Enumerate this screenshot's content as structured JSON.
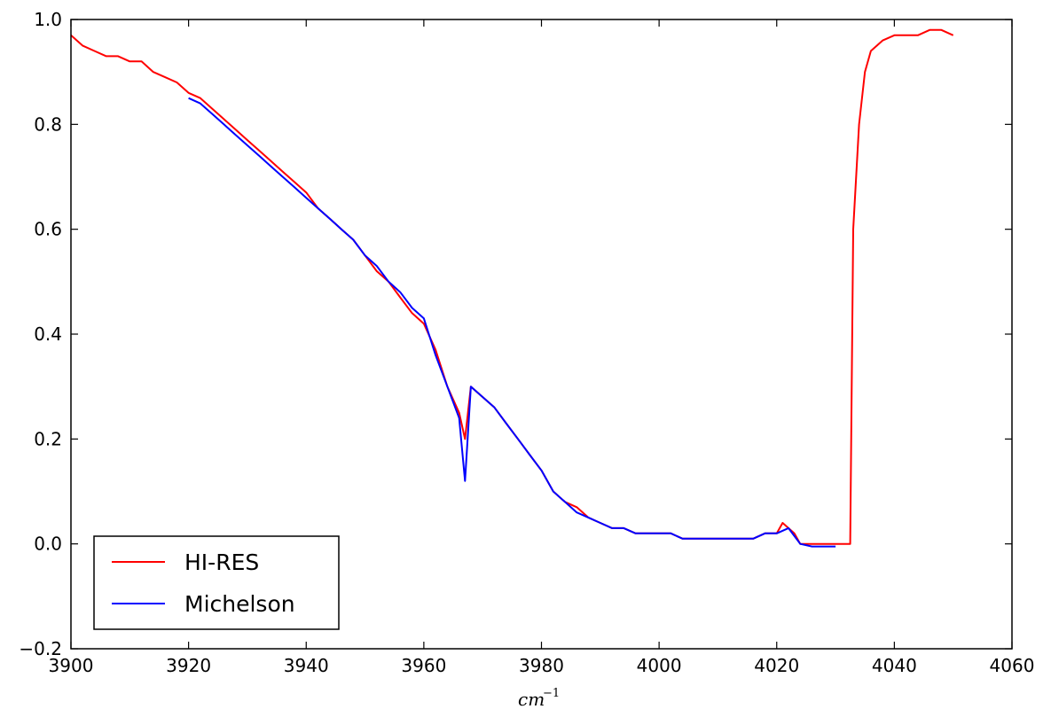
{
  "chart_data": {
    "type": "line",
    "title": "",
    "xlabel": "cm",
    "xlabel_sup": "−1",
    "ylabel": "",
    "xlim": [
      3900,
      4060
    ],
    "ylim": [
      -0.2,
      1.0
    ],
    "x_ticks": [
      3900,
      3920,
      3940,
      3960,
      3980,
      4000,
      4020,
      4040,
      4060
    ],
    "y_ticks": [
      -0.2,
      0.0,
      0.2,
      0.4,
      0.6,
      0.8,
      1.0
    ],
    "x_tick_labels": [
      "3900",
      "3920",
      "3940",
      "3960",
      "3980",
      "4000",
      "4020",
      "4040",
      "4060"
    ],
    "y_tick_labels": [
      "−0.2",
      "0.0",
      "0.2",
      "0.4",
      "0.6",
      "0.8",
      "1.0"
    ],
    "grid": false,
    "legend_position": "lower-left",
    "series": [
      {
        "name": "HI-RES",
        "color": "#ff0000",
        "x": [
          3900,
          3902,
          3904,
          3906,
          3908,
          3910,
          3912,
          3914,
          3916,
          3918,
          3920,
          3922,
          3924,
          3926,
          3928,
          3930,
          3932,
          3934,
          3936,
          3938,
          3940,
          3942,
          3944,
          3946,
          3948,
          3950,
          3952,
          3954,
          3956,
          3958,
          3960,
          3962,
          3964,
          3966,
          3967,
          3968,
          3970,
          3972,
          3974,
          3976,
          3978,
          3980,
          3982,
          3984,
          3986,
          3988,
          3990,
          3992,
          3994,
          3996,
          3998,
          4000,
          4002,
          4004,
          4006,
          4008,
          4010,
          4012,
          4014,
          4016,
          4018,
          4020,
          4021,
          4022,
          4023,
          4024,
          4026,
          4028,
          4030,
          4032,
          4032.5,
          4033,
          4034,
          4035,
          4036,
          4038,
          4040,
          4042,
          4044,
          4046,
          4048,
          4050
        ],
        "y": [
          0.97,
          0.95,
          0.94,
          0.93,
          0.93,
          0.92,
          0.92,
          0.9,
          0.89,
          0.88,
          0.86,
          0.85,
          0.83,
          0.81,
          0.79,
          0.77,
          0.75,
          0.73,
          0.71,
          0.69,
          0.67,
          0.64,
          0.62,
          0.6,
          0.58,
          0.55,
          0.52,
          0.5,
          0.47,
          0.44,
          0.42,
          0.37,
          0.3,
          0.25,
          0.2,
          0.3,
          0.28,
          0.26,
          0.23,
          0.2,
          0.17,
          0.14,
          0.1,
          0.08,
          0.07,
          0.05,
          0.04,
          0.03,
          0.03,
          0.02,
          0.02,
          0.02,
          0.02,
          0.01,
          0.01,
          0.01,
          0.01,
          0.01,
          0.01,
          0.01,
          0.02,
          0.02,
          0.04,
          0.03,
          0.02,
          0.0,
          0.0,
          0.0,
          0.0,
          0.0,
          0.0,
          0.6,
          0.8,
          0.9,
          0.94,
          0.96,
          0.97,
          0.97,
          0.97,
          0.98,
          0.98,
          0.97
        ]
      },
      {
        "name": "Michelson",
        "color": "#0000ff",
        "x": [
          3920,
          3922,
          3924,
          3926,
          3928,
          3930,
          3932,
          3934,
          3936,
          3938,
          3940,
          3942,
          3944,
          3946,
          3948,
          3950,
          3952,
          3954,
          3956,
          3958,
          3960,
          3962,
          3964,
          3966,
          3967,
          3968,
          3970,
          3972,
          3974,
          3976,
          3978,
          3980,
          3982,
          3984,
          3986,
          3988,
          3990,
          3992,
          3994,
          3996,
          3998,
          4000,
          4002,
          4004,
          4006,
          4008,
          4010,
          4012,
          4014,
          4016,
          4018,
          4020,
          4022,
          4024,
          4026,
          4028,
          4030
        ],
        "y": [
          0.85,
          0.84,
          0.82,
          0.8,
          0.78,
          0.76,
          0.74,
          0.72,
          0.7,
          0.68,
          0.66,
          0.64,
          0.62,
          0.6,
          0.58,
          0.55,
          0.53,
          0.5,
          0.48,
          0.45,
          0.43,
          0.36,
          0.3,
          0.24,
          0.12,
          0.3,
          0.28,
          0.26,
          0.23,
          0.2,
          0.17,
          0.14,
          0.1,
          0.08,
          0.06,
          0.05,
          0.04,
          0.03,
          0.03,
          0.02,
          0.02,
          0.02,
          0.02,
          0.01,
          0.01,
          0.01,
          0.01,
          0.01,
          0.01,
          0.01,
          0.02,
          0.02,
          0.03,
          0.0,
          -0.005,
          -0.005,
          -0.005
        ]
      }
    ]
  }
}
